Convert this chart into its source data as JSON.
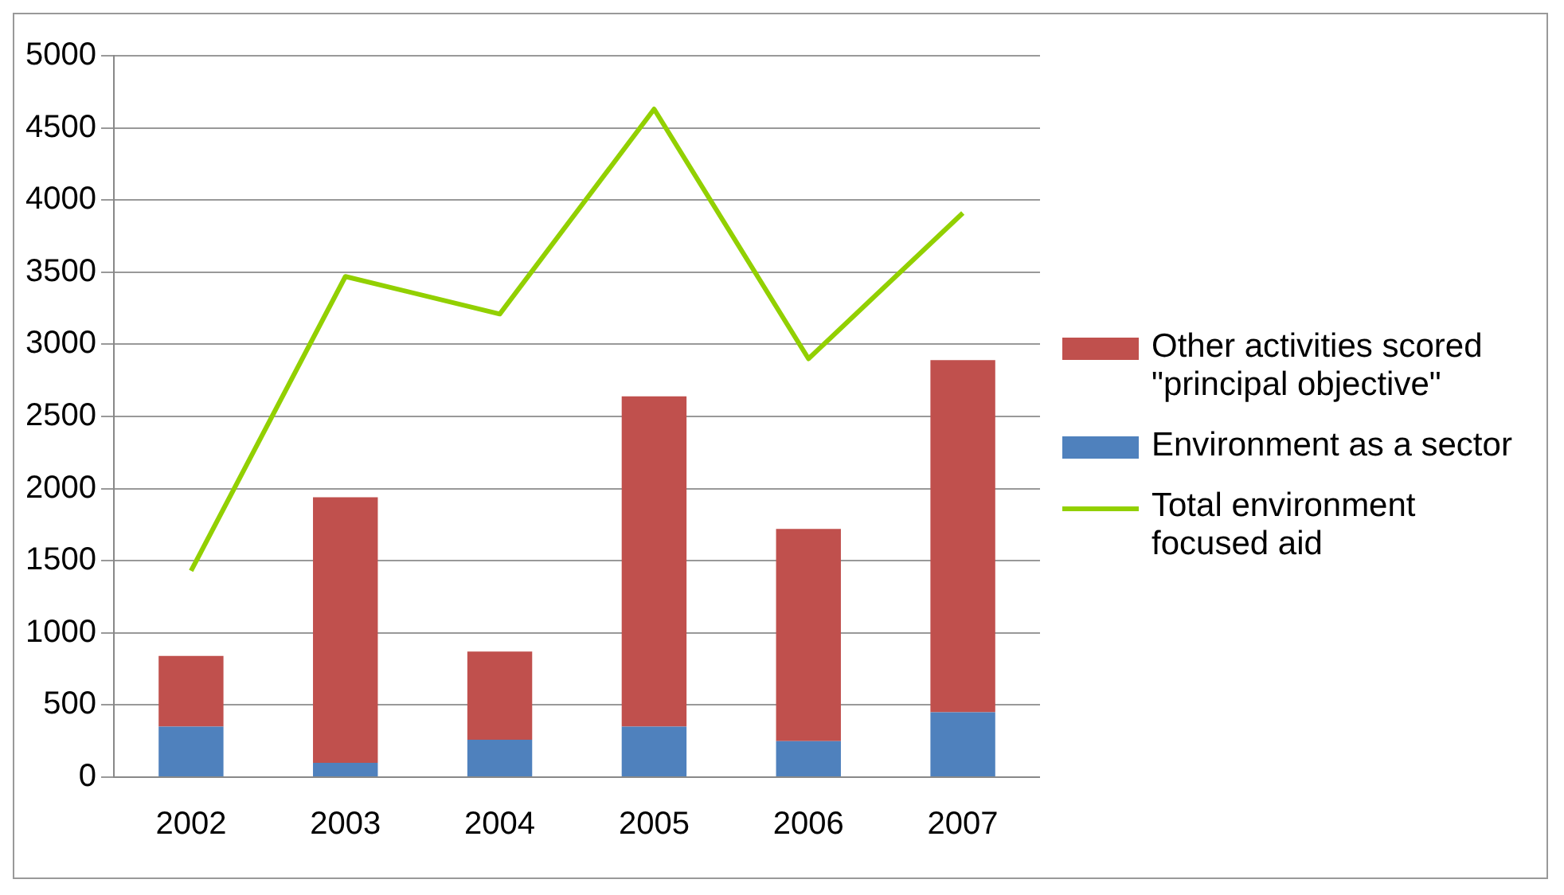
{
  "chart_data": {
    "type": "bar",
    "stacked": true,
    "categories": [
      "2002",
      "2003",
      "2004",
      "2005",
      "2006",
      "2007"
    ],
    "series": [
      {
        "name": "Environment as a sector",
        "color": "#4f81bd",
        "values": [
          350,
          100,
          260,
          350,
          250,
          450
        ]
      },
      {
        "name": "Other activities scored \"principal objective\"",
        "color": "#c0504d",
        "values": [
          490,
          1840,
          610,
          2290,
          1470,
          2440
        ]
      },
      {
        "name": "Total environment focused aid",
        "type": "line",
        "color": "#92d000",
        "values": [
          1430,
          3470,
          3210,
          4630,
          2900,
          3910
        ]
      }
    ],
    "ylim": [
      0,
      5000
    ],
    "yticks": [
      0,
      500,
      1000,
      1500,
      2000,
      2500,
      3000,
      3500,
      4000,
      4500,
      5000
    ],
    "grid": "y",
    "legend": "right"
  }
}
